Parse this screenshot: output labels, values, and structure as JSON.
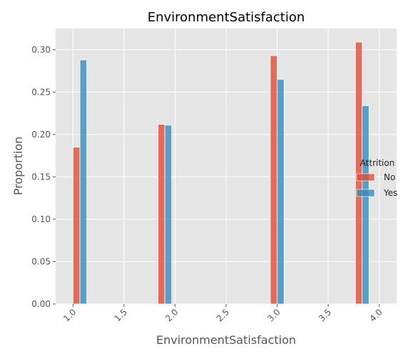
{
  "chart_data": {
    "type": "bar",
    "title": "EnvironmentSatisfaction",
    "xlabel": "EnvironmentSatisfaction",
    "ylabel": "Proportion",
    "xlim": [
      0.83,
      4.17
    ],
    "ylim": [
      0,
      0.325
    ],
    "xticks": [
      "1.0",
      "1.5",
      "2.0",
      "2.5",
      "3.0",
      "3.5",
      "4.0"
    ],
    "xtick_values": [
      1.0,
      1.5,
      2.0,
      2.5,
      3.0,
      3.5,
      4.0
    ],
    "yticks": [
      "0.00",
      "0.05",
      "0.10",
      "0.15",
      "0.20",
      "0.25",
      "0.30"
    ],
    "ytick_values": [
      0.0,
      0.05,
      0.1,
      0.15,
      0.2,
      0.25,
      0.3
    ],
    "grid": true,
    "legend_title": "Attrition",
    "legend_position": "center-right",
    "series": [
      {
        "name": "No",
        "color": "#E24A33",
        "bars": [
          {
            "x0": 1.0,
            "x1": 1.068,
            "value": 0.185
          },
          {
            "x0": 1.833,
            "x1": 1.9,
            "value": 0.212
          },
          {
            "x0": 2.933,
            "x1": 3.0,
            "value": 0.293
          },
          {
            "x0": 3.767,
            "x1": 3.833,
            "value": 0.309
          }
        ]
      },
      {
        "name": "Yes",
        "color": "#348ABD",
        "bars": [
          {
            "x0": 1.068,
            "x1": 1.135,
            "value": 0.288
          },
          {
            "x0": 1.9,
            "x1": 1.967,
            "value": 0.211
          },
          {
            "x0": 3.0,
            "x1": 3.068,
            "value": 0.265
          },
          {
            "x0": 3.833,
            "x1": 3.9,
            "value": 0.234
          }
        ]
      }
    ]
  }
}
